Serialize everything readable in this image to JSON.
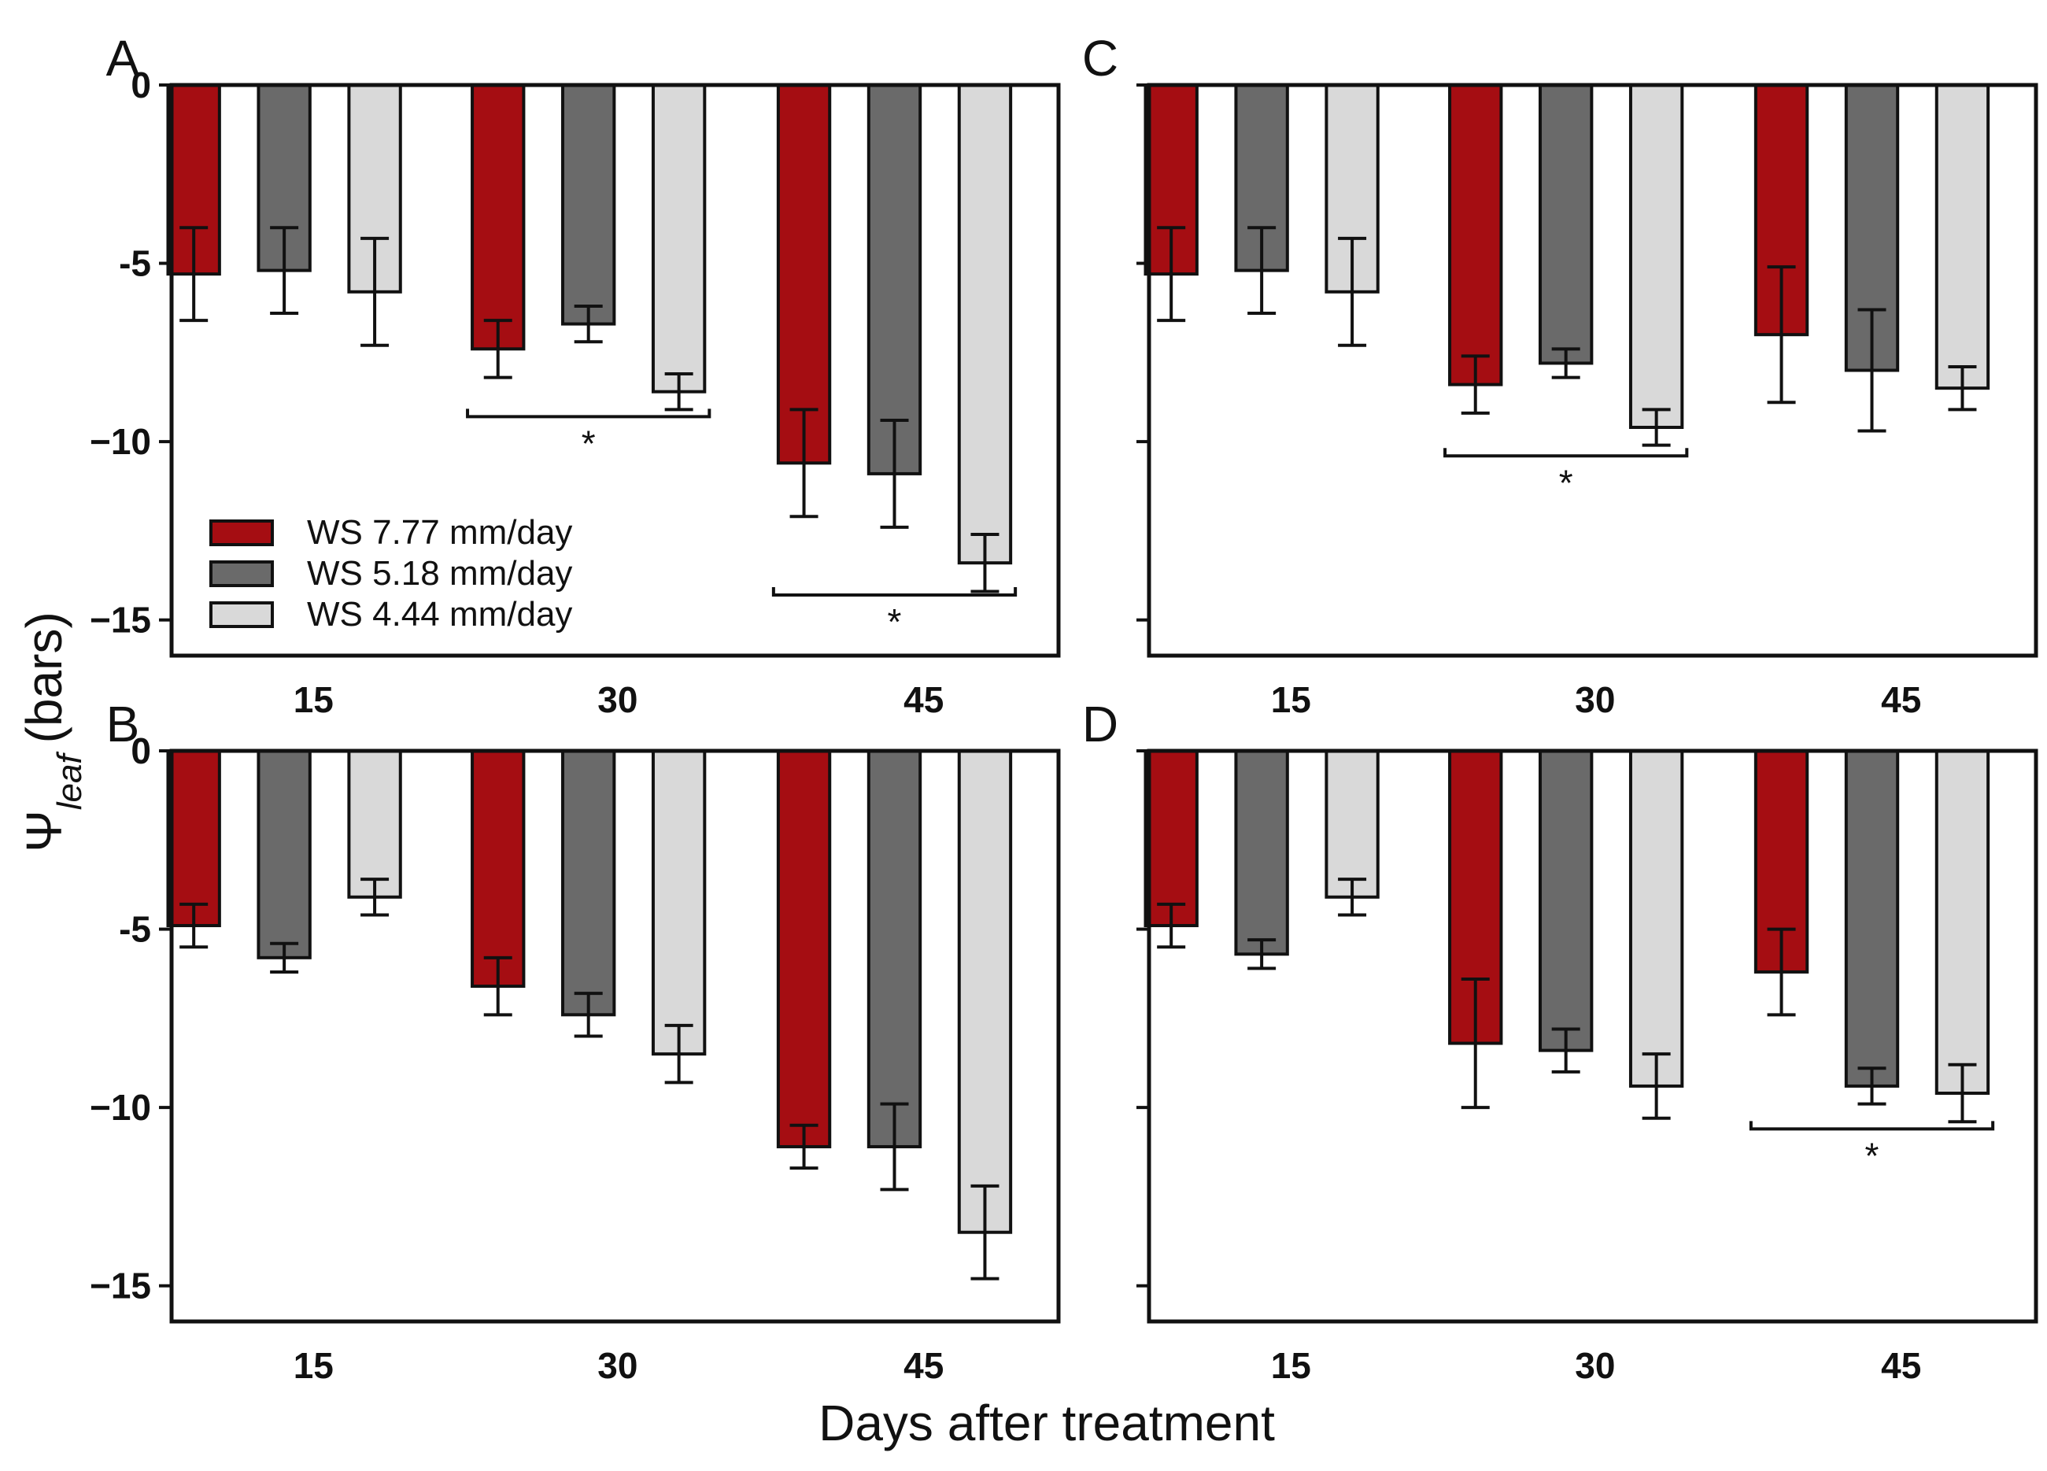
{
  "chart_data": {
    "type": "bar",
    "ylabel_symbol": "Ψ",
    "ylabel_subscript": "leaf",
    "ylabel_unit": "(bars)",
    "xlabel": "Days after treatment",
    "categories": [
      "15",
      "30",
      "45"
    ],
    "ylim": [
      -16,
      0
    ],
    "yticks": [
      0,
      -5,
      -10,
      -15
    ],
    "ytick_labels": [
      "0",
      "-5",
      "−10",
      "−15"
    ],
    "series_names": [
      "WS 7.77 mm/day",
      "WS 5.18 mm/day",
      "WS 4.44 mm/day"
    ],
    "colors": [
      "#a50d12",
      "#6a6a6a",
      "#d9d9d9"
    ],
    "significance_marker": "*",
    "legend_position": "panel A, lower-left",
    "panels": [
      {
        "label": "A",
        "show_yticks": true,
        "series": [
          {
            "name": "WS 7.77 mm/day",
            "values": [
              -5.3,
              -7.4,
              -10.6
            ],
            "errors": [
              1.3,
              0.8,
              1.5
            ]
          },
          {
            "name": "WS 5.18 mm/day",
            "values": [
              -5.2,
              -6.7,
              -10.9
            ],
            "errors": [
              1.2,
              0.5,
              1.5
            ]
          },
          {
            "name": "WS 4.44 mm/day",
            "values": [
              -5.8,
              -8.6,
              -13.4
            ],
            "errors": [
              1.5,
              0.5,
              0.8
            ]
          }
        ],
        "significance": [
          {
            "category": "30",
            "y": -9.3
          },
          {
            "category": "45",
            "y": -14.3
          }
        ]
      },
      {
        "label": "C",
        "show_yticks": false,
        "series": [
          {
            "name": "WS 7.77 mm/day",
            "values": [
              -5.3,
              -8.4,
              -7.0
            ],
            "errors": [
              1.3,
              0.8,
              1.9
            ]
          },
          {
            "name": "WS 5.18 mm/day",
            "values": [
              -5.2,
              -7.8,
              -8.0
            ],
            "errors": [
              1.2,
              0.4,
              1.7
            ]
          },
          {
            "name": "WS 4.44 mm/day",
            "values": [
              -5.8,
              -9.6,
              -8.5
            ],
            "errors": [
              1.5,
              0.5,
              0.6
            ]
          }
        ],
        "significance": [
          {
            "category": "30",
            "y": -10.4
          }
        ]
      },
      {
        "label": "B",
        "show_yticks": true,
        "series": [
          {
            "name": "WS 7.77 mm/day",
            "values": [
              -4.9,
              -6.6,
              -11.1
            ],
            "errors": [
              0.6,
              0.8,
              0.6
            ]
          },
          {
            "name": "WS 5.18 mm/day",
            "values": [
              -5.8,
              -7.4,
              -11.1
            ],
            "errors": [
              0.4,
              0.6,
              1.2
            ]
          },
          {
            "name": "WS 4.44 mm/day",
            "values": [
              -4.1,
              -8.5,
              -13.5
            ],
            "errors": [
              0.5,
              0.8,
              1.3
            ]
          }
        ],
        "significance": []
      },
      {
        "label": "D",
        "show_yticks": false,
        "series": [
          {
            "name": "WS 7.77 mm/day",
            "values": [
              -4.9,
              -8.2,
              -6.2
            ],
            "errors": [
              0.6,
              1.8,
              1.2
            ]
          },
          {
            "name": "WS 5.18 mm/day",
            "values": [
              -5.7,
              -8.4,
              -9.4
            ],
            "errors": [
              0.4,
              0.6,
              0.5
            ]
          },
          {
            "name": "WS 4.44 mm/day",
            "values": [
              -4.1,
              -9.4,
              -9.6
            ],
            "errors": [
              0.5,
              0.9,
              0.8
            ]
          }
        ],
        "significance": [
          {
            "category": "45",
            "y": -10.6
          }
        ]
      }
    ]
  }
}
